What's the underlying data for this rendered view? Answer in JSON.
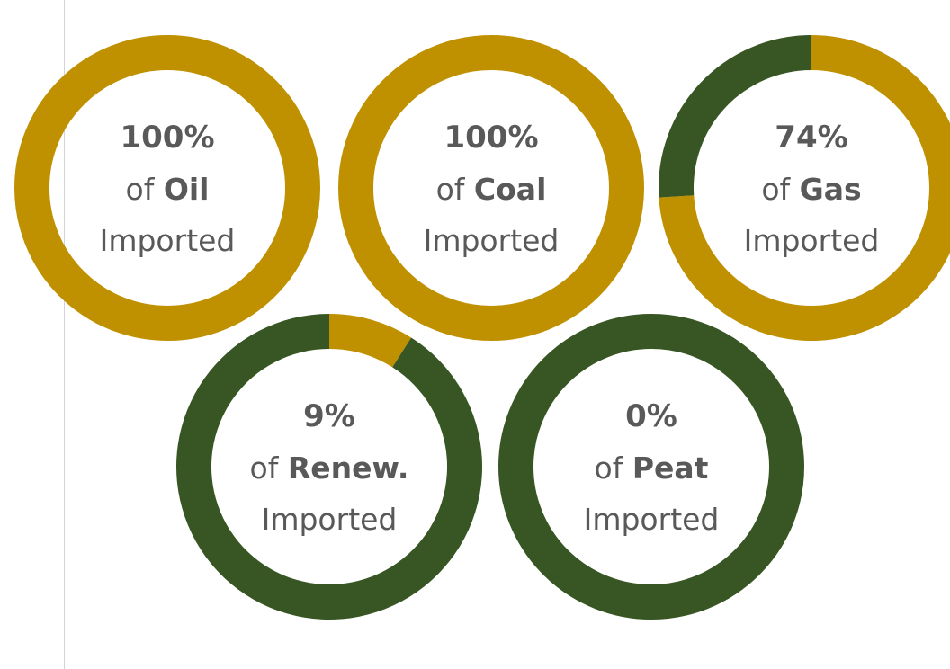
{
  "chart_data": {
    "type": "pie",
    "colors": {
      "imported": "#bf9000",
      "domestic": "#375623"
    },
    "charts": [
      {
        "fuel": "Oil",
        "imported_pct": 100,
        "pct_label": "100%",
        "of_label": "of",
        "suffix_label": "Imported"
      },
      {
        "fuel": "Coal",
        "imported_pct": 100,
        "pct_label": "100%",
        "of_label": "of",
        "suffix_label": "Imported"
      },
      {
        "fuel": "Gas",
        "imported_pct": 74,
        "pct_label": "74%",
        "of_label": "of",
        "suffix_label": "Imported"
      },
      {
        "fuel": "Renew.",
        "imported_pct": 9,
        "pct_label": "9%",
        "of_label": "of",
        "suffix_label": "Imported"
      },
      {
        "fuel": "Peat",
        "imported_pct": 0,
        "pct_label": "0%",
        "of_label": "of",
        "suffix_label": "Imported"
      }
    ]
  }
}
